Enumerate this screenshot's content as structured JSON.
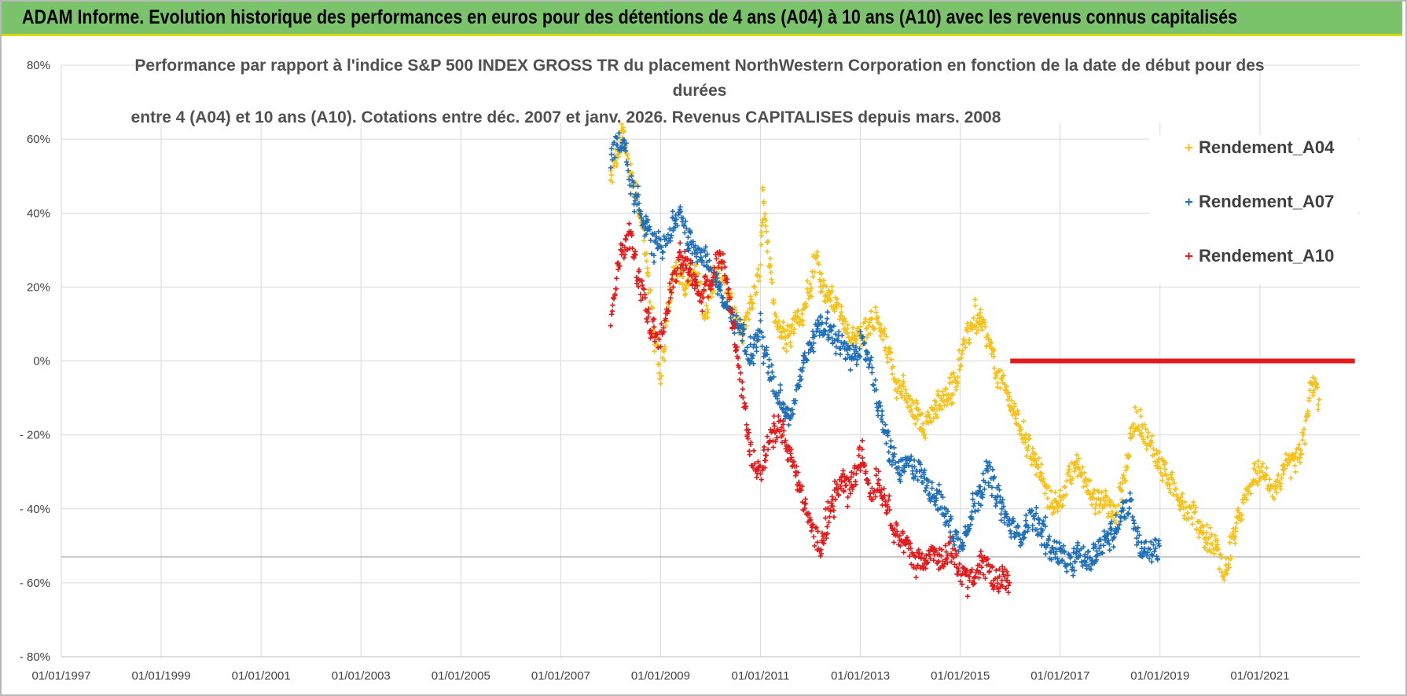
{
  "banner": {
    "title": "ADAM Informe. Evolution historique des performances en euros pour des détentions de 4 ans (A04) à 10 ans (A10) avec les revenus connus capitalisés"
  },
  "chart_data": {
    "type": "scatter",
    "title_lines": [
      "Performance par rapport à l'indice S&P 500 INDEX GROSS TR  du placement NorthWestern Corporation en fonction de la date de début pour des",
      "durées",
      "entre 4 (A04) et 10 ans (A10).  Cotations entre déc. 2007 et janv. 2026. Revenus CAPITALISES depuis mars. 2008"
    ],
    "xlabel": "",
    "ylabel": "",
    "x_range": [
      1997.0,
      2023.0
    ],
    "ylim": [
      -80,
      80
    ],
    "x_tick_labels": [
      "01/01/1997",
      "01/01/1999",
      "01/01/2001",
      "01/01/2003",
      "01/01/2005",
      "01/01/2007",
      "01/01/2009",
      "01/01/2011",
      "01/01/2013",
      "01/01/2015",
      "01/01/2017",
      "01/01/2019",
      "01/01/2021"
    ],
    "x_tick_years": [
      1997,
      1999,
      2001,
      2003,
      2005,
      2007,
      2009,
      2011,
      2013,
      2015,
      2017,
      2019,
      2021
    ],
    "y_ticks": [
      80,
      60,
      40,
      20,
      0,
      -20,
      -40,
      -60,
      -80
    ],
    "y_tick_labels": [
      "80%",
      "60%",
      "40%",
      "20%",
      "0%",
      "- 20%",
      "- 40%",
      "- 60%",
      "- 80%"
    ],
    "legend_position": "top-right",
    "series": [
      {
        "name": "Rendement_A04",
        "color": "#f5c21b",
        "points": [
          [
            2008.0,
            48
          ],
          [
            2008.1,
            55
          ],
          [
            2008.25,
            62
          ],
          [
            2008.4,
            50
          ],
          [
            2008.6,
            40
          ],
          [
            2008.75,
            22
          ],
          [
            2008.9,
            5
          ],
          [
            2009.0,
            -5
          ],
          [
            2009.15,
            15
          ],
          [
            2009.3,
            25
          ],
          [
            2009.5,
            20
          ],
          [
            2009.7,
            25
          ],
          [
            2009.9,
            12
          ],
          [
            2010.0,
            20
          ],
          [
            2010.2,
            25
          ],
          [
            2010.4,
            15
          ],
          [
            2010.6,
            8
          ],
          [
            2010.8,
            15
          ],
          [
            2011.0,
            25
          ],
          [
            2011.05,
            45
          ],
          [
            2011.15,
            30
          ],
          [
            2011.3,
            10
          ],
          [
            2011.5,
            5
          ],
          [
            2011.7,
            10
          ],
          [
            2011.9,
            15
          ],
          [
            2012.1,
            28
          ],
          [
            2012.3,
            18
          ],
          [
            2012.5,
            15
          ],
          [
            2012.7,
            10
          ],
          [
            2012.9,
            5
          ],
          [
            2013.1,
            8
          ],
          [
            2013.3,
            12
          ],
          [
            2013.5,
            5
          ],
          [
            2013.7,
            -5
          ],
          [
            2013.9,
            -10
          ],
          [
            2014.1,
            -15
          ],
          [
            2014.3,
            -18
          ],
          [
            2014.5,
            -12
          ],
          [
            2014.7,
            -10
          ],
          [
            2014.9,
            -5
          ],
          [
            2015.1,
            5
          ],
          [
            2015.3,
            12
          ],
          [
            2015.5,
            8
          ],
          [
            2015.7,
            -2
          ],
          [
            2015.9,
            -8
          ],
          [
            2016.1,
            -15
          ],
          [
            2016.3,
            -20
          ],
          [
            2016.5,
            -28
          ],
          [
            2016.7,
            -35
          ],
          [
            2016.9,
            -40
          ],
          [
            2017.1,
            -35
          ],
          [
            2017.3,
            -28
          ],
          [
            2017.5,
            -32
          ],
          [
            2017.7,
            -38
          ],
          [
            2017.9,
            -38
          ],
          [
            2018.1,
            -42
          ],
          [
            2018.3,
            -30
          ],
          [
            2018.5,
            -15
          ],
          [
            2018.7,
            -20
          ],
          [
            2018.9,
            -25
          ],
          [
            2019.1,
            -30
          ],
          [
            2019.3,
            -35
          ],
          [
            2019.5,
            -40
          ],
          [
            2019.7,
            -42
          ],
          [
            2019.9,
            -48
          ],
          [
            2020.1,
            -50
          ],
          [
            2020.3,
            -58
          ],
          [
            2020.5,
            -45
          ],
          [
            2020.7,
            -38
          ],
          [
            2020.9,
            -30
          ],
          [
            2021.1,
            -32
          ],
          [
            2021.3,
            -35
          ],
          [
            2021.5,
            -30
          ],
          [
            2021.7,
            -28
          ],
          [
            2021.9,
            -20
          ],
          [
            2022.0,
            -8
          ],
          [
            2022.1,
            -5
          ],
          [
            2022.2,
            -15
          ]
        ]
      },
      {
        "name": "Rendement_A07",
        "color": "#1f6fb8",
        "points": [
          [
            2008.0,
            55
          ],
          [
            2008.1,
            58
          ],
          [
            2008.25,
            60
          ],
          [
            2008.4,
            48
          ],
          [
            2008.6,
            40
          ],
          [
            2008.8,
            32
          ],
          [
            2009.0,
            30
          ],
          [
            2009.2,
            35
          ],
          [
            2009.4,
            40
          ],
          [
            2009.6,
            32
          ],
          [
            2009.8,
            30
          ],
          [
            2010.0,
            25
          ],
          [
            2010.2,
            18
          ],
          [
            2010.4,
            12
          ],
          [
            2010.6,
            8
          ],
          [
            2010.8,
            2
          ],
          [
            2011.0,
            8
          ],
          [
            2011.2,
            -5
          ],
          [
            2011.4,
            -10
          ],
          [
            2011.6,
            -15
          ],
          [
            2011.8,
            -5
          ],
          [
            2012.0,
            5
          ],
          [
            2012.2,
            10
          ],
          [
            2012.4,
            8
          ],
          [
            2012.6,
            5
          ],
          [
            2012.8,
            0
          ],
          [
            2013.0,
            5
          ],
          [
            2013.2,
            0
          ],
          [
            2013.4,
            -15
          ],
          [
            2013.6,
            -25
          ],
          [
            2013.8,
            -30
          ],
          [
            2014.0,
            -28
          ],
          [
            2014.2,
            -30
          ],
          [
            2014.4,
            -35
          ],
          [
            2014.6,
            -38
          ],
          [
            2014.8,
            -45
          ],
          [
            2015.0,
            -50
          ],
          [
            2015.2,
            -42
          ],
          [
            2015.4,
            -35
          ],
          [
            2015.6,
            -30
          ],
          [
            2015.8,
            -38
          ],
          [
            2016.0,
            -45
          ],
          [
            2016.2,
            -48
          ],
          [
            2016.4,
            -42
          ],
          [
            2016.6,
            -45
          ],
          [
            2016.8,
            -50
          ],
          [
            2017.0,
            -52
          ],
          [
            2017.2,
            -55
          ],
          [
            2017.4,
            -52
          ],
          [
            2017.6,
            -55
          ],
          [
            2017.8,
            -50
          ],
          [
            2018.0,
            -48
          ],
          [
            2018.2,
            -42
          ],
          [
            2018.4,
            -38
          ],
          [
            2018.6,
            -50
          ],
          [
            2018.8,
            -52
          ],
          [
            2019.0,
            -50
          ]
        ]
      },
      {
        "name": "Rendement_A10",
        "color": "#e31a1c",
        "points": [
          [
            2008.0,
            10
          ],
          [
            2008.1,
            22
          ],
          [
            2008.25,
            30
          ],
          [
            2008.4,
            33
          ],
          [
            2008.6,
            20
          ],
          [
            2008.8,
            10
          ],
          [
            2009.0,
            5
          ],
          [
            2009.2,
            20
          ],
          [
            2009.4,
            28
          ],
          [
            2009.6,
            25
          ],
          [
            2009.8,
            15
          ],
          [
            2010.0,
            22
          ],
          [
            2010.2,
            30
          ],
          [
            2010.4,
            15
          ],
          [
            2010.6,
            -5
          ],
          [
            2010.8,
            -25
          ],
          [
            2011.0,
            -30
          ],
          [
            2011.2,
            -20
          ],
          [
            2011.4,
            -18
          ],
          [
            2011.6,
            -25
          ],
          [
            2011.8,
            -35
          ],
          [
            2012.0,
            -45
          ],
          [
            2012.2,
            -50
          ],
          [
            2012.4,
            -40
          ],
          [
            2012.6,
            -33
          ],
          [
            2012.8,
            -35
          ],
          [
            2013.0,
            -25
          ],
          [
            2013.2,
            -35
          ],
          [
            2013.4,
            -33
          ],
          [
            2013.6,
            -42
          ],
          [
            2013.8,
            -48
          ],
          [
            2014.0,
            -52
          ],
          [
            2014.2,
            -55
          ],
          [
            2014.4,
            -52
          ],
          [
            2014.6,
            -55
          ],
          [
            2014.8,
            -50
          ],
          [
            2015.0,
            -58
          ],
          [
            2015.2,
            -60
          ],
          [
            2015.4,
            -55
          ],
          [
            2015.6,
            -57
          ],
          [
            2015.8,
            -60
          ],
          [
            2016.0,
            -58
          ]
        ],
        "flat_segment": {
          "x_start": 2016.0,
          "x_end": 2022.9,
          "y": 0
        }
      }
    ]
  }
}
